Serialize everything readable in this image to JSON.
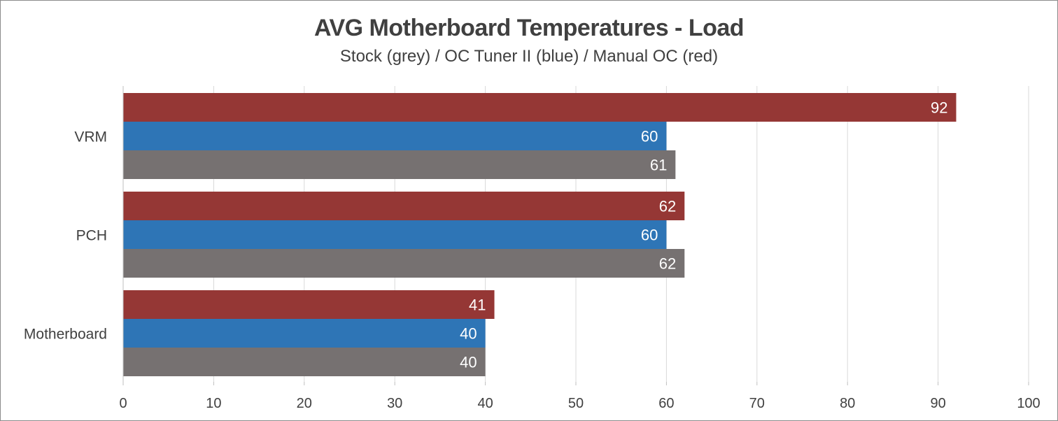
{
  "chart_data": {
    "type": "bar",
    "orientation": "horizontal",
    "title": "AVG Motherboard Temperatures - Load",
    "subtitle": "Stock (grey) / OC Tuner II (blue) / Manual OC (red)",
    "categories": [
      "VRM",
      "PCH",
      "Motherboard"
    ],
    "series": [
      {
        "name": "Manual OC",
        "color": "#953735",
        "values": [
          92,
          62,
          41
        ]
      },
      {
        "name": "OC Tuner II",
        "color": "#2e75b6",
        "values": [
          60,
          60,
          40
        ]
      },
      {
        "name": "Stock",
        "color": "#767171",
        "values": [
          61,
          62,
          40
        ]
      }
    ],
    "xlim": [
      0,
      100
    ],
    "xticks": [
      0,
      10,
      20,
      30,
      40,
      50,
      60,
      70,
      80,
      90,
      100
    ],
    "grid": true,
    "legend": "none"
  }
}
